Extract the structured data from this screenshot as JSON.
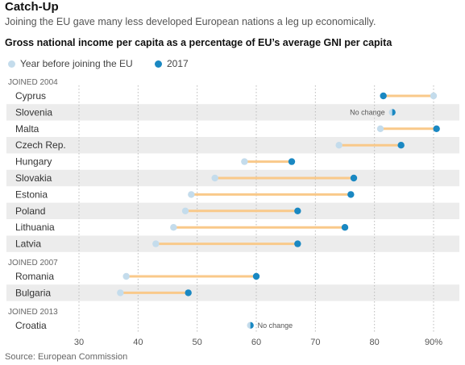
{
  "header": {
    "title": "Catch-Up",
    "subtitle": "Joining the EU gave many less developed European nations a leg up economically.",
    "chart_title": "Gross national income per capita as a percentage of EU’s average GNI per capita"
  },
  "legend": {
    "before": "Year before joining the EU",
    "after": "2017"
  },
  "source": "Source: European Commission",
  "colors": {
    "before": "#c4dcec",
    "after": "#1a88c2",
    "bar": "#f9c98a",
    "stripe": "#ececec",
    "grid": "#bbbbbb"
  },
  "chart_data": {
    "type": "dot-range",
    "title": "Gross national income per capita as a percentage of EU’s average GNI per capita",
    "x_ticks": [
      "30",
      "40",
      "50",
      "60",
      "70",
      "80",
      "90%"
    ],
    "xlim": [
      25,
      94
    ],
    "series": [
      {
        "name": "Year before joining the EU"
      },
      {
        "name": "2017"
      }
    ],
    "groups": [
      {
        "label": "JOINED 2004",
        "countries": [
          {
            "name": "Cyprus",
            "before": 90,
            "after": 81.5
          },
          {
            "name": "Slovenia",
            "before": 83,
            "after": 83,
            "note": "No change"
          },
          {
            "name": "Malta",
            "before": 81,
            "after": 90.5
          },
          {
            "name": "Czech Rep.",
            "before": 74,
            "after": 84.5
          },
          {
            "name": "Hungary",
            "before": 58,
            "after": 66
          },
          {
            "name": "Slovakia",
            "before": 53,
            "after": 76.5
          },
          {
            "name": "Estonia",
            "before": 49,
            "after": 76
          },
          {
            "name": "Poland",
            "before": 48,
            "after": 67
          },
          {
            "name": "Lithuania",
            "before": 46,
            "after": 75
          },
          {
            "name": "Latvia",
            "before": 43,
            "after": 67
          }
        ]
      },
      {
        "label": "JOINED 2007",
        "countries": [
          {
            "name": "Romania",
            "before": 38,
            "after": 60
          },
          {
            "name": "Bulgaria",
            "before": 37,
            "after": 48.5
          }
        ]
      },
      {
        "label": "JOINED 2013",
        "countries": [
          {
            "name": "Croatia",
            "before": 59,
            "after": 59,
            "note": "No change"
          }
        ]
      }
    ]
  }
}
